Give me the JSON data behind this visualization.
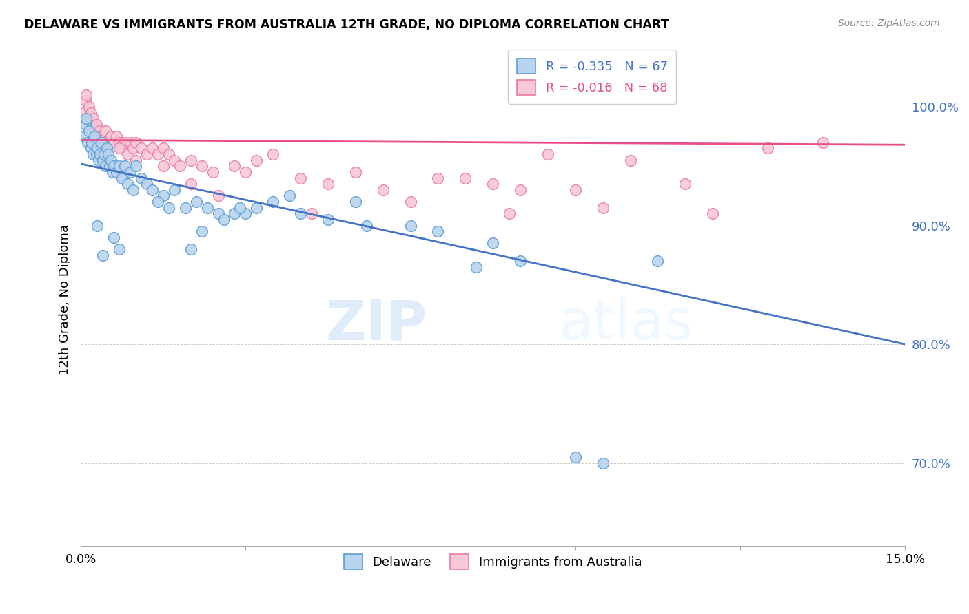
{
  "title": "DELAWARE VS IMMIGRANTS FROM AUSTRALIA 12TH GRADE, NO DIPLOMA CORRELATION CHART",
  "source": "Source: ZipAtlas.com",
  "ylabel": "12th Grade, No Diploma",
  "legend_delaware": "Delaware",
  "legend_australia": "Immigrants from Australia",
  "r_delaware": -0.335,
  "n_delaware": 67,
  "r_australia": -0.016,
  "n_australia": 68,
  "xmin": 0.0,
  "xmax": 15.0,
  "ymin": 63.0,
  "ymax": 104.5,
  "yticks": [
    70.0,
    80.0,
    90.0,
    100.0
  ],
  "xticks": [
    0.0,
    3.0,
    6.0,
    9.0,
    12.0,
    15.0
  ],
  "color_delaware_fill": "#b8d4ee",
  "color_delaware_edge": "#5b9bd5",
  "color_delaware_line": "#4472c4",
  "color_australia_fill": "#f8c8d8",
  "color_australia_edge": "#e87ca0",
  "color_australia_line": "#e84c8b",
  "background_color": "#ffffff",
  "watermark": "ZIPatlas",
  "delaware_x": [
    0.05,
    0.08,
    0.1,
    0.12,
    0.15,
    0.18,
    0.2,
    0.22,
    0.25,
    0.28,
    0.3,
    0.32,
    0.35,
    0.38,
    0.4,
    0.42,
    0.45,
    0.48,
    0.5,
    0.52,
    0.55,
    0.58,
    0.6,
    0.65,
    0.7,
    0.75,
    0.8,
    0.85,
    0.9,
    0.95,
    1.0,
    1.1,
    1.2,
    1.3,
    1.5,
    1.7,
    1.9,
    2.1,
    2.3,
    2.5,
    2.8,
    3.2,
    3.5,
    4.0,
    4.5,
    5.2,
    6.5,
    7.2,
    8.0,
    9.0,
    9.5,
    10.5,
    2.0,
    2.2,
    3.0,
    3.8,
    5.0,
    6.0,
    7.5,
    1.4,
    1.6,
    2.6,
    2.9,
    0.6,
    0.4,
    0.7,
    0.3
  ],
  "delaware_y": [
    97.5,
    98.5,
    99.0,
    97.0,
    98.0,
    96.5,
    97.0,
    96.0,
    97.5,
    96.0,
    96.5,
    95.5,
    96.0,
    97.0,
    95.5,
    96.0,
    95.0,
    96.5,
    96.0,
    95.0,
    95.5,
    94.5,
    95.0,
    94.5,
    95.0,
    94.0,
    95.0,
    93.5,
    94.5,
    93.0,
    95.0,
    94.0,
    93.5,
    93.0,
    92.5,
    93.0,
    91.5,
    92.0,
    91.5,
    91.0,
    91.0,
    91.5,
    92.0,
    91.0,
    90.5,
    90.0,
    89.5,
    86.5,
    87.0,
    70.5,
    70.0,
    87.0,
    88.0,
    89.5,
    91.0,
    92.5,
    92.0,
    90.0,
    88.5,
    92.0,
    91.5,
    90.5,
    91.5,
    89.0,
    87.5,
    88.0,
    90.0
  ],
  "australia_x": [
    0.05,
    0.08,
    0.1,
    0.12,
    0.15,
    0.18,
    0.2,
    0.22,
    0.25,
    0.28,
    0.3,
    0.32,
    0.35,
    0.38,
    0.4,
    0.42,
    0.45,
    0.5,
    0.55,
    0.6,
    0.65,
    0.7,
    0.75,
    0.8,
    0.85,
    0.9,
    0.95,
    1.0,
    1.1,
    1.2,
    1.3,
    1.4,
    1.5,
    1.6,
    1.7,
    1.8,
    2.0,
    2.2,
    2.4,
    2.8,
    3.2,
    3.5,
    4.0,
    4.5,
    5.0,
    5.5,
    6.5,
    7.0,
    7.5,
    8.0,
    9.0,
    10.0,
    11.0,
    12.5,
    13.5,
    0.5,
    0.7,
    1.0,
    1.5,
    2.0,
    2.5,
    3.0,
    4.2,
    6.0,
    7.8,
    8.5,
    9.5,
    11.5
  ],
  "australia_y": [
    99.5,
    100.5,
    101.0,
    99.0,
    100.0,
    99.5,
    98.5,
    99.0,
    98.0,
    98.5,
    97.0,
    97.5,
    98.0,
    97.0,
    97.5,
    97.0,
    98.0,
    97.0,
    97.5,
    97.0,
    97.5,
    97.0,
    96.5,
    97.0,
    96.0,
    97.0,
    96.5,
    97.0,
    96.5,
    96.0,
    96.5,
    96.0,
    96.5,
    96.0,
    95.5,
    95.0,
    95.5,
    95.0,
    94.5,
    95.0,
    95.5,
    96.0,
    94.0,
    93.5,
    94.5,
    93.0,
    94.0,
    94.0,
    93.5,
    93.0,
    93.0,
    95.5,
    93.5,
    96.5,
    97.0,
    96.0,
    96.5,
    95.5,
    95.0,
    93.5,
    92.5,
    94.5,
    91.0,
    92.0,
    91.0,
    96.0,
    91.5,
    91.0
  ]
}
